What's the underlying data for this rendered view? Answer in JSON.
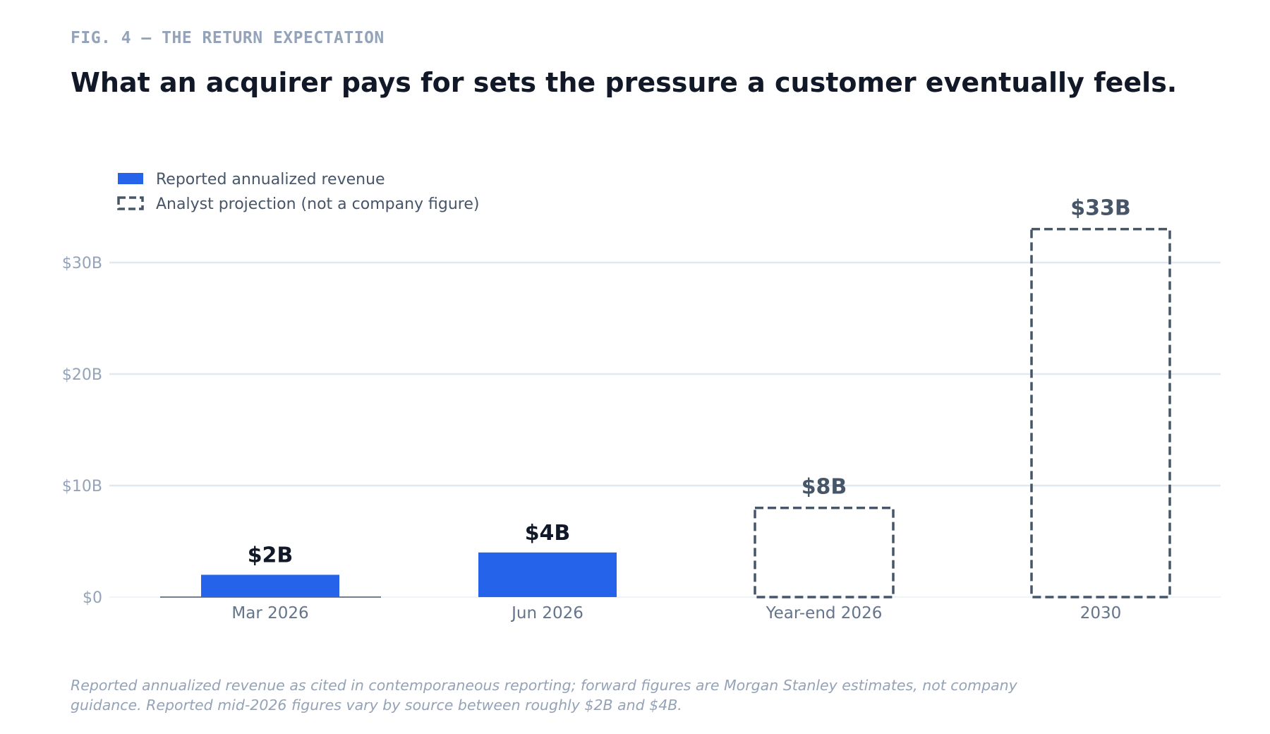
{
  "figure": {
    "label": "FIG. 4 — THE RETURN EXPECTATION",
    "headline": "What an acquirer pays for sets the pressure a customer eventually feels.",
    "footnote_lines": [
      "Reported annualized revenue as cited in contemporaneous reporting; forward figures are Morgan Stanley estimates, not company",
      "guidance. Reported mid-2026 figures vary by source between roughly $2B and $4B."
    ]
  },
  "colors": {
    "reported": "#2563eb",
    "projection": "#475569",
    "grid": "#e2e8f0",
    "axis_text": "#94a3b8",
    "category_text": "#64748b",
    "label_dark": "#111827"
  },
  "chart_data": {
    "type": "bar",
    "title": "",
    "xlabel": "",
    "ylabel": "",
    "ylim": [
      0,
      33
    ],
    "unit": "billion USD",
    "yticks": [
      0,
      10,
      20,
      30
    ],
    "ytick_labels": [
      "$0",
      "$10B",
      "$20B",
      "$30B"
    ],
    "grid": true,
    "legend_position": "top-left",
    "categories": [
      "Mar 2026",
      "Jun 2026",
      "Year-end 2026",
      "2030"
    ],
    "series": [
      {
        "name": "Reported annualized revenue",
        "style": "solid",
        "values": [
          2,
          4,
          null,
          null
        ],
        "labels": [
          "$2B",
          "$4B",
          null,
          null
        ]
      },
      {
        "name": "Analyst projection (not a company figure)",
        "style": "dashed",
        "values": [
          null,
          null,
          8,
          33
        ],
        "labels": [
          null,
          null,
          "$8B",
          "$33B"
        ]
      }
    ]
  }
}
